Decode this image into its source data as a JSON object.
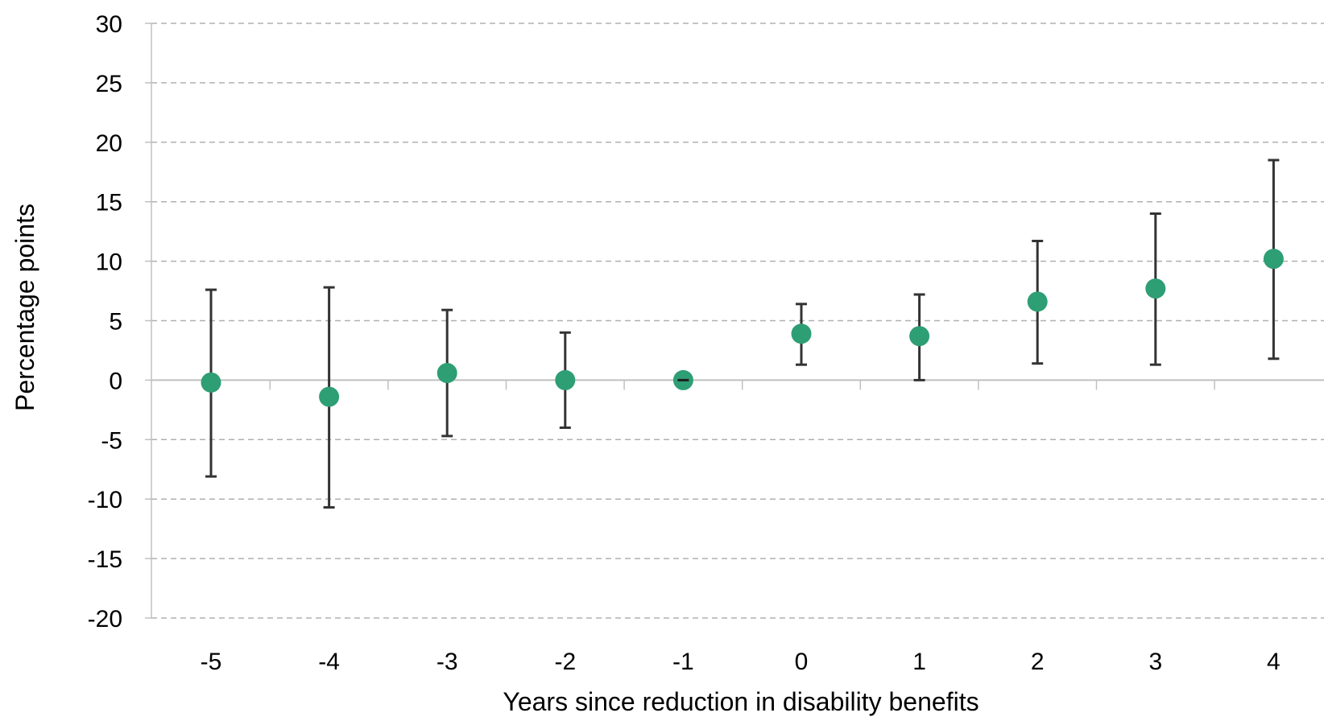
{
  "chart_data": {
    "type": "scatter",
    "xlabel": "Years since reduction in disability benefits",
    "ylabel": "Percentage points",
    "categories": [
      "-5",
      "-4",
      "-3",
      "-2",
      "-1",
      "0",
      "1",
      "2",
      "3",
      "4"
    ],
    "ylim": [
      -20,
      30
    ],
    "yticks": [
      30,
      25,
      20,
      15,
      10,
      5,
      0,
      -5,
      -10,
      -15,
      -20
    ],
    "grid": "horizontal dashed",
    "series": [
      {
        "values": [
          -0.2,
          -1.4,
          0.6,
          0.0,
          0.0,
          3.9,
          3.7,
          6.6,
          7.7,
          10.2
        ],
        "ci_low": [
          -8.1,
          -10.7,
          -4.7,
          -4.0,
          0.0,
          1.3,
          0.0,
          1.4,
          1.3,
          1.8
        ],
        "ci_high": [
          7.6,
          7.8,
          5.9,
          4.0,
          0.0,
          6.4,
          7.2,
          11.7,
          14.0,
          18.5
        ]
      }
    ],
    "colors": {
      "marker": "#2e9e74",
      "errorbar": "#333333",
      "grid": "#b0b0b0",
      "axis": "#c0c0c0"
    }
  }
}
